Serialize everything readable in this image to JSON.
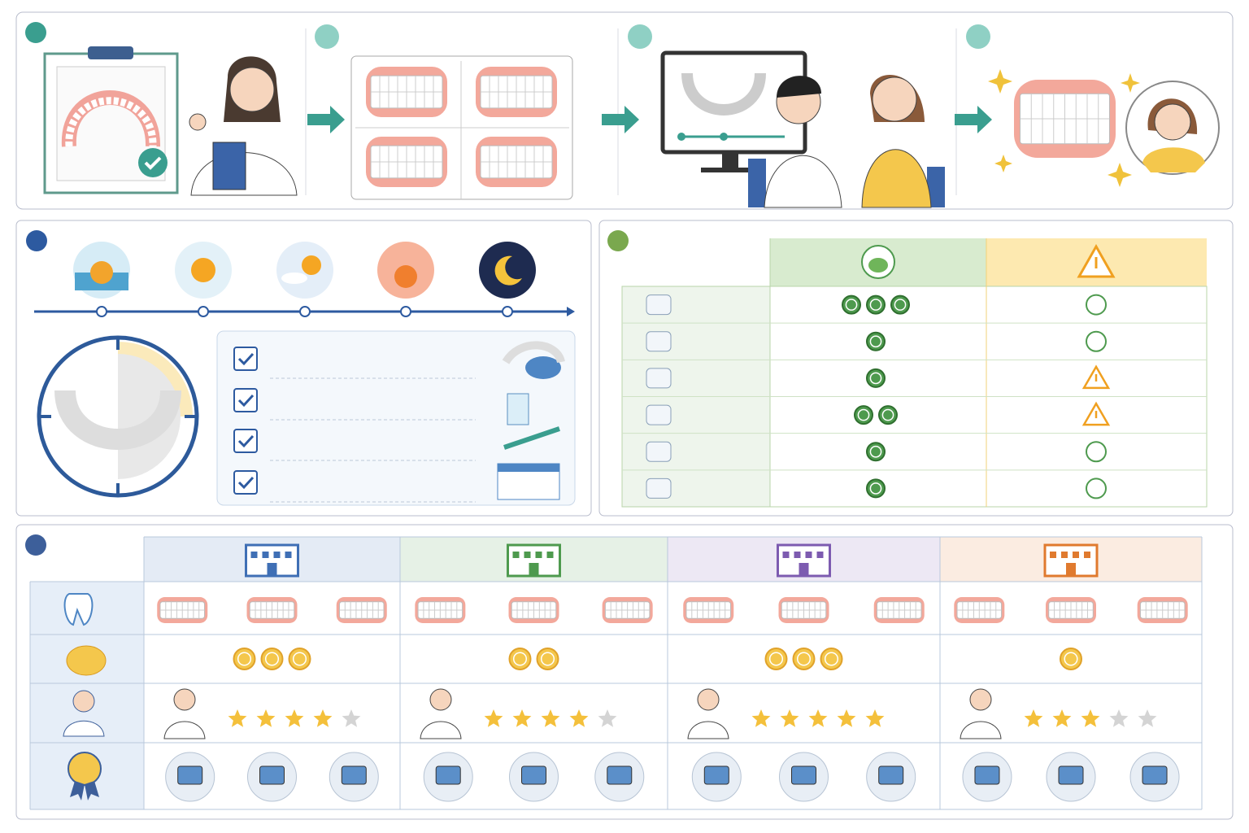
{
  "cost_table": {
    "rows": [
      {
        "cost": 3,
        "warning": false
      },
      {
        "cost": 1,
        "warning": false
      },
      {
        "cost": 1,
        "warning": true
      },
      {
        "cost": 2,
        "warning": true
      },
      {
        "cost": 1,
        "warning": false
      },
      {
        "cost": 1,
        "warning": false
      }
    ]
  },
  "clinic_comparison": {
    "clinics": [
      {
        "color": "#3f6fb5",
        "cost": 3,
        "rating": 4
      },
      {
        "color": "#4e9a4e",
        "cost": 2,
        "rating": 4
      },
      {
        "color": "#7d5bb0",
        "cost": 3,
        "rating": 5
      },
      {
        "color": "#e07a2e",
        "cost": 1,
        "rating": 3
      }
    ]
  }
}
